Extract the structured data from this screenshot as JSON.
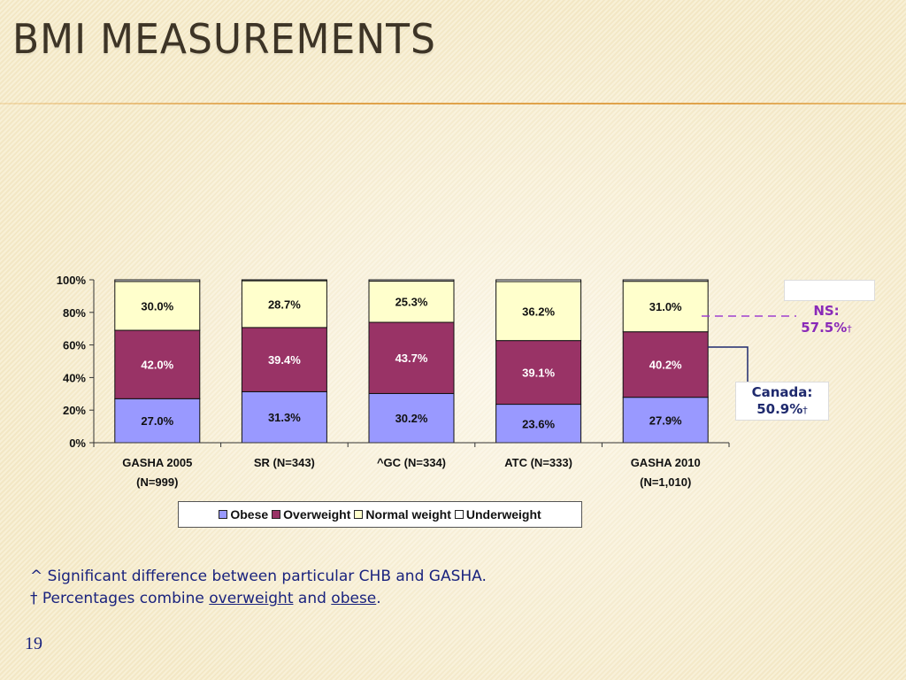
{
  "slide": {
    "title": "BMI MEASUREMENTS",
    "page_number": "19"
  },
  "notes": {
    "line1": "^ Significant difference between particular CHB and GASHA.",
    "line2_prefix": "† Percentages combine ",
    "line2_overweight": "overweight",
    "line2_and": " and ",
    "line2_obese": "obese",
    "line2_suffix": "."
  },
  "callouts": {
    "ns_label": "NS:",
    "ns_value": "57.5%",
    "ns_dagger": "†",
    "canada_label": "Canada:",
    "canada_value": "50.9%",
    "canada_dagger": "†"
  },
  "colors": {
    "obese": "#9999ff",
    "overweight": "#993366",
    "normal_weight": "#ffffcc",
    "underweight": "#ffffff",
    "ns_text": "#8a2ab8",
    "canada_text": "#1f2a6e"
  },
  "chart_data": {
    "type": "bar",
    "stacked": true,
    "categories": [
      [
        "GASHA 2005",
        "(N=999)"
      ],
      [
        "SR (N=343)"
      ],
      [
        "^GC (N=334)"
      ],
      [
        "ATC (N=333)"
      ],
      [
        "GASHA 2010",
        "(N=1,010)"
      ]
    ],
    "series": [
      {
        "name": "Obese",
        "values": [
          27.0,
          31.3,
          30.2,
          23.6,
          27.9
        ],
        "labels": [
          "27.0%",
          "31.3%",
          "30.2%",
          "23.6%",
          "27.9%"
        ]
      },
      {
        "name": "Overweight",
        "values": [
          42.0,
          39.4,
          43.7,
          39.1,
          40.2
        ],
        "labels": [
          "42.0%",
          "39.4%",
          "43.7%",
          "39.1%",
          "40.2%"
        ]
      },
      {
        "name": "Normal weight",
        "values": [
          30.0,
          28.7,
          25.3,
          36.2,
          31.0
        ],
        "labels": [
          "30.0%",
          "28.7%",
          "25.3%",
          "36.2%",
          "31.0%"
        ]
      },
      {
        "name": "Underweight",
        "values": [
          1.0,
          0.6,
          0.8,
          1.1,
          0.9
        ],
        "labels": []
      }
    ],
    "y_ticks": [
      "0%",
      "20%",
      "40%",
      "60%",
      "80%",
      "100%"
    ],
    "ylim": [
      0,
      100
    ],
    "legend": "bottom"
  }
}
